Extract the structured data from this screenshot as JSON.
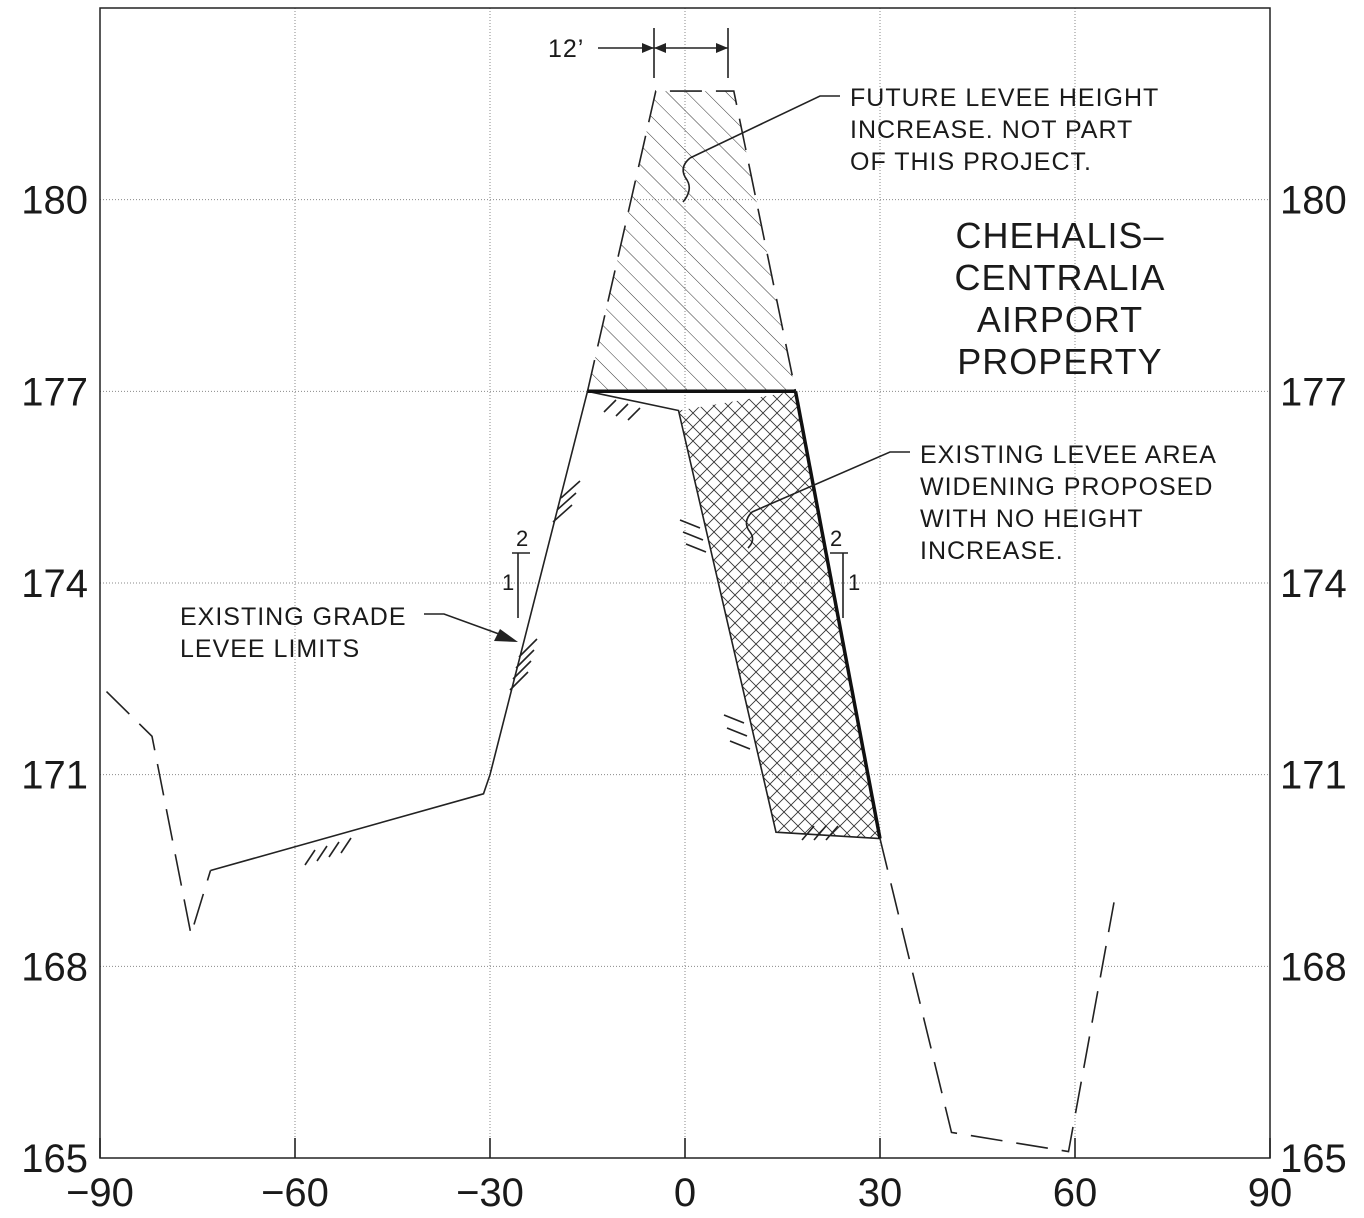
{
  "x_axis": {
    "ticks": [
      -90,
      -60,
      -30,
      0,
      30,
      60,
      90
    ],
    "tick_labels": [
      "−90",
      "−60",
      "−30",
      "0",
      "30",
      "60",
      "90"
    ]
  },
  "y_axis": {
    "ticks": [
      165,
      168,
      171,
      174,
      177,
      180
    ],
    "tick_labels": [
      "165",
      "168",
      "171",
      "174",
      "177",
      "180"
    ]
  },
  "crest_dimension": "12’",
  "notes": {
    "future": [
      "FUTURE LEVEE HEIGHT",
      "INCREASE. NOT PART",
      "OF THIS PROJECT."
    ],
    "widening": [
      "EXISTING LEVEE AREA",
      "WIDENING PROPOSED",
      "WITH NO HEIGHT",
      "INCREASE."
    ],
    "grade": [
      "EXISTING GRADE",
      "LEVEE LIMITS"
    ]
  },
  "property_title": [
    "CHEHALIS–",
    "CENTRALIA",
    "AIRPORT",
    "PROPERTY"
  ],
  "slope_left": {
    "rise": "2",
    "run": "1"
  },
  "slope_right": {
    "rise": "2",
    "run": "1"
  },
  "geometry": {
    "left_dashed_ground": [
      [
        -89,
        172.3
      ],
      [
        -82,
        171.6
      ],
      [
        -76,
        168.5
      ],
      [
        -73,
        169.5
      ]
    ],
    "left_ground": [
      [
        -73,
        169.5
      ],
      [
        -31,
        170.7
      ],
      [
        -30,
        171.0
      ],
      [
        -15,
        177.0
      ]
    ],
    "existing_crest_inner": [
      [
        -15,
        177.0
      ],
      [
        -1,
        176.7
      ],
      [
        14,
        170.1
      ],
      [
        30,
        170.0
      ]
    ],
    "proposed_crest_top": [
      [
        -15,
        177.0
      ],
      [
        17,
        177.0
      ]
    ],
    "proposed_slope": [
      [
        17,
        177.0
      ],
      [
        30,
        170.0
      ]
    ],
    "widening_area": [
      [
        -1,
        176.7
      ],
      [
        17,
        177.0
      ],
      [
        30,
        170.0
      ],
      [
        14,
        170.1
      ]
    ],
    "future_levee": [
      [
        -15,
        177.0
      ],
      [
        -4.5,
        181.7
      ],
      [
        7.5,
        181.7
      ],
      [
        17,
        177.0
      ]
    ],
    "right_dashed_ground": [
      [
        30,
        170.0
      ],
      [
        41,
        165.4
      ],
      [
        59,
        165.1
      ],
      [
        66,
        169.0
      ]
    ]
  }
}
